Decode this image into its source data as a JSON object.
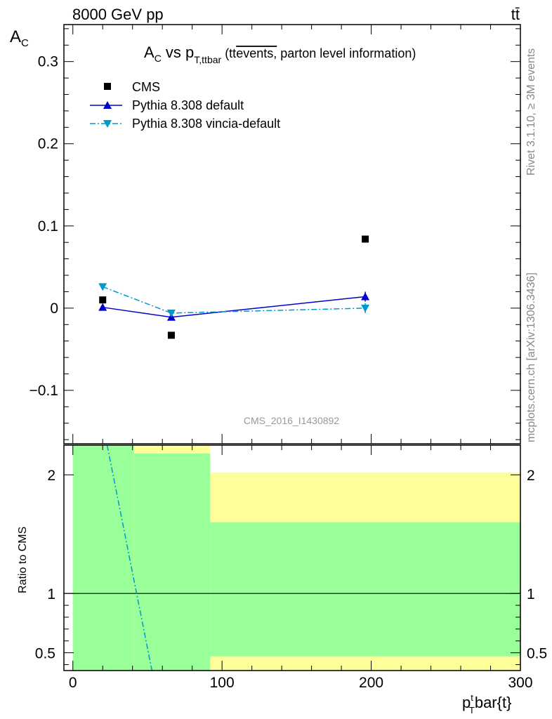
{
  "header": {
    "energy_label": "8000 GeV pp",
    "process_label": "tt̄"
  },
  "side_labels": {
    "rivet": "Rivet 3.1.10, ≥ 3M events",
    "mcplots": "mcplots.cern.ch [arXiv:1306.3436]"
  },
  "analysis_id": "CMS_2016_I1430892",
  "colors": {
    "ratio_band_inner": "#99ff99",
    "ratio_band_outer": "#ffff99",
    "cms": "#000000",
    "pythia_default": "#0000cc",
    "pythia_vincia": "#0099cc"
  },
  "chart_data": [
    {
      "type": "scatter",
      "panel": "main",
      "title": "A_C vs p_T,ttbar (tt̄ events, parton level information)",
      "title_parts": {
        "a": "A",
        "a_sub": "C",
        "vs": " vs p",
        "p_sub": "T,ttbar",
        "paren_open": " (tt",
        "overline": "events,",
        "rest": " parton level information)"
      },
      "ylabel": "A",
      "ylabel_sub": "C",
      "xlim": [
        -6,
        300
      ],
      "ylim": [
        -0.165,
        0.345
      ],
      "yticks": [
        -0.1,
        0,
        0.1,
        0.2,
        0.3
      ],
      "ytick_labels": [
        "−0.1",
        "0",
        "0.1",
        "0.2",
        "0.3"
      ],
      "legend_position": "top-left",
      "series": [
        {
          "name": "CMS",
          "marker": "square",
          "x": [
            20,
            66,
            196
          ],
          "y": [
            0.01,
            -0.033,
            0.084
          ]
        },
        {
          "name": "Pythia 8.308 default",
          "marker": "triangle-up",
          "line": "solid",
          "x": [
            20,
            66,
            196
          ],
          "y": [
            0.001,
            -0.011,
            0.014
          ],
          "yerr": [
            0.002,
            0.002,
            0.006
          ]
        },
        {
          "name": "Pythia 8.308 vincia-default",
          "marker": "triangle-down",
          "line": "dashdot",
          "x": [
            20,
            66,
            196
          ],
          "y": [
            0.026,
            -0.006,
            0.0
          ],
          "yerr": [
            0.002,
            0.002,
            0.006
          ]
        }
      ]
    },
    {
      "type": "area",
      "panel": "ratio",
      "ylabel": "Ratio to CMS",
      "xlabel": "p_T^t bar{t}",
      "xlabel_parts": {
        "p": "p",
        "sup": "t",
        "sub": "T",
        "rest": "bar{t}"
      },
      "xlim": [
        -6,
        300
      ],
      "ylim": [
        0.35,
        2.25
      ],
      "yticks": [
        0.5,
        1,
        2
      ],
      "ytick_labels": [
        "0.5",
        "1",
        "2"
      ],
      "xticks": [
        0,
        100,
        200,
        300
      ],
      "xtick_labels": [
        "0",
        "100",
        "200",
        "300"
      ],
      "bins": [
        {
          "x0": 0,
          "x1": 41,
          "inner_lo": 0.35,
          "inner_hi": 2.25,
          "outer_lo": 0.35,
          "outer_hi": 2.25
        },
        {
          "x0": 41,
          "x1": 92,
          "inner_lo": 0.35,
          "inner_hi": 2.18,
          "outer_lo": 0.35,
          "outer_hi": 2.25
        },
        {
          "x0": 92,
          "x1": 300,
          "inner_lo": 0.47,
          "inner_hi": 1.6,
          "outer_lo": 0.35,
          "outer_hi": 2.02
        }
      ],
      "reference_y": 1,
      "series": [
        {
          "name": "Pythia 8.308 vincia-default",
          "line": "dashdot",
          "x": [
            23,
            53
          ],
          "y": [
            2.25,
            0.35
          ]
        }
      ]
    }
  ]
}
